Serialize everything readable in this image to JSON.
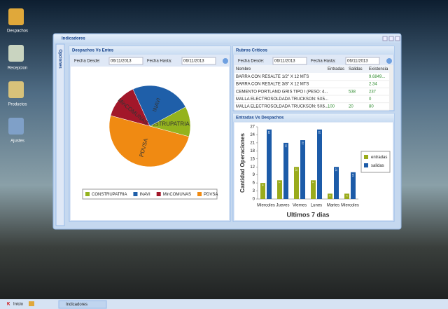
{
  "desktop_icons": [
    "Despachos",
    "Recepcion",
    "Productos",
    "Ajustes"
  ],
  "window": {
    "title": "Indicadores",
    "sidebar": "Opciones"
  },
  "panels": [
    {
      "title": "Despachos Vs Entes",
      "from_label": "Fecha Desde:",
      "from": "06/11/2013",
      "to_label": "Fecha Hasta:",
      "to": "06/11/2013"
    },
    {
      "title": "Rubros Criticos",
      "from_label": "Fecha Desde:",
      "from": "06/11/2013",
      "to_label": "Fecha Hasta:",
      "to": "06/11/2013"
    },
    {
      "title": "Entradas Vs Despachos"
    }
  ],
  "table": {
    "columns": [
      "Nombre",
      "Entradas",
      "Salidas",
      "Existencia"
    ],
    "rows": [
      [
        "BARRA CON RESALTE 1/2\" X 12 MTS",
        null,
        null,
        "9.6849..."
      ],
      [
        "BARRA CON RESALTE 3/8\" X 12 MTS",
        null,
        null,
        "2.34"
      ],
      [
        "CEMENTO PORTLAND GRIS TIPO I (PESO: 4...",
        null,
        "538",
        "237"
      ],
      [
        "MALLA ELECTROSOLDADA TRUCKSON: 5X5...",
        null,
        null,
        "0"
      ],
      [
        "MALLA ELECTROSOLDADA TRUCKSON: 5X6...",
        "100",
        "20",
        "80"
      ]
    ]
  },
  "chart_data": [
    {
      "type": "pie",
      "categories": [
        "CONSTRUPATRIA",
        "INAVI",
        "MinCOMUNAS",
        "PDVSA"
      ],
      "values": [
        12,
        24,
        14,
        50
      ],
      "colors": [
        "#94b31d",
        "#1f5fa9",
        "#a2172a",
        "#f08a12"
      ],
      "legend": "bottom"
    },
    {
      "type": "bar",
      "xlabel": "Ultimos 7 dias",
      "ylabel": "Cantidad Operaciones",
      "categories": [
        "Miercoles",
        "Jueves",
        "Viernes",
        "Lunes",
        "Martes",
        "Miercoles"
      ],
      "series": [
        {
          "name": "entradas",
          "color": "#9aab1c",
          "values": [
            6,
            7,
            12,
            7,
            2,
            2
          ]
        },
        {
          "name": "salidas",
          "color": "#1c5ba8",
          "values": [
            26,
            21,
            22,
            26,
            12,
            10
          ]
        }
      ],
      "ylim": [
        0,
        27
      ],
      "yticks": [
        0,
        3,
        6,
        9,
        12,
        15,
        18,
        21,
        24,
        27
      ],
      "legend": "right"
    }
  ],
  "taskbar": {
    "start": "Inicio",
    "tasks": [
      "Indicadores"
    ]
  }
}
